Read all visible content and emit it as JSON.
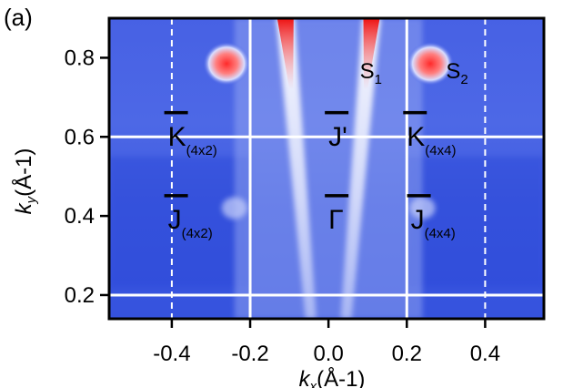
{
  "panel_label": "(a)",
  "chart_data": {
    "type": "heatmap",
    "title": "",
    "xlabel": "k",
    "xlabel_sub": "x",
    "xlabel_unit": "(Å-1)",
    "ylabel": "k",
    "ylabel_sub": "y",
    "ylabel_unit": "(Å-1)",
    "xlim": [
      -0.56,
      0.55
    ],
    "ylim": [
      0.14,
      0.9
    ],
    "xticks": [
      -0.4,
      -0.2,
      0.0,
      0.2,
      0.4
    ],
    "xtick_labels": [
      "-0.4",
      "-0.2",
      "0.0",
      "0.2",
      "0.4"
    ],
    "yticks": [
      0.2,
      0.4,
      0.6,
      0.8
    ],
    "ytick_labels": [
      "0.2",
      "0.4",
      "0.6",
      "0.8"
    ],
    "colormap": [
      "#2233dd",
      "#ffffff",
      "#ee1111"
    ],
    "background_color": "#3a55e0",
    "solid_lines": {
      "x": [
        -0.2,
        0.2
      ],
      "y": [
        0.2,
        0.6
      ]
    },
    "dashed_lines": {
      "x": [
        -0.4,
        0.4
      ]
    },
    "features": [
      {
        "name": "S",
        "sub": "1",
        "x": 0.08,
        "y": 0.78,
        "peak_x": 0.11
      },
      {
        "name": "S",
        "sub": "2",
        "x": 0.3,
        "y": 0.78,
        "peak_x": 0.25
      }
    ],
    "points": [
      {
        "label": "K",
        "sub": "(4x2)",
        "x": -0.41,
        "y": 0.61
      },
      {
        "label": "J'",
        "sub": "",
        "x": 0.0,
        "y": 0.61
      },
      {
        "label": "K",
        "sub": "(4x4)",
        "x": 0.2,
        "y": 0.61
      },
      {
        "label": "J",
        "sub": "(4x2)",
        "x": -0.41,
        "y": 0.4
      },
      {
        "label": "Γ",
        "sub": "",
        "x": 0.0,
        "y": 0.4
      },
      {
        "label": "J",
        "sub": "(4x4)",
        "x": 0.21,
        "y": 0.4
      }
    ]
  }
}
